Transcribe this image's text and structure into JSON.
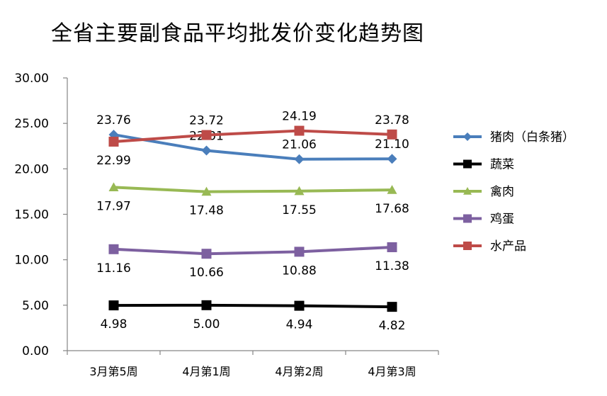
{
  "chart_data": {
    "type": "line",
    "title": "全省主要副食品平均批发价变化趋势图",
    "categories": [
      "3月第5周",
      "4月第1周",
      "4月第2周",
      "4月第3周"
    ],
    "ylim": [
      0,
      30
    ],
    "yticks": [
      "0.00",
      "5.00",
      "10.00",
      "15.00",
      "20.00",
      "25.00",
      "30.00"
    ],
    "grid": false,
    "legend_position": "right",
    "series": [
      {
        "name": "猪肉（白条猪）",
        "values": [
          23.76,
          22.01,
          21.06,
          21.1
        ],
        "labels": [
          "23.76",
          "22.01",
          "21.06",
          "21.10"
        ],
        "color": "#4A7EBB",
        "marker": "diamond",
        "label_pos": "above"
      },
      {
        "name": "蔬菜",
        "values": [
          4.98,
          5.0,
          4.94,
          4.82
        ],
        "labels": [
          "4.98",
          "5.00",
          "4.94",
          "4.82"
        ],
        "color": "#000000",
        "marker": "square",
        "label_pos": "below"
      },
      {
        "name": "禽肉",
        "values": [
          17.97,
          17.48,
          17.55,
          17.68
        ],
        "labels": [
          "17.97",
          "17.48",
          "17.55",
          "17.68"
        ],
        "color": "#98B954",
        "marker": "triangle",
        "label_pos": "below"
      },
      {
        "name": "鸡蛋",
        "values": [
          11.16,
          10.66,
          10.88,
          11.38
        ],
        "labels": [
          "11.16",
          "10.66",
          "10.88",
          "11.38"
        ],
        "color": "#7D60A0",
        "marker": "square",
        "label_pos": "below"
      },
      {
        "name": "水产品",
        "values": [
          22.99,
          23.72,
          24.19,
          23.78
        ],
        "labels": [
          "22.99",
          "23.72",
          "24.19",
          "23.78"
        ],
        "color": "#BE4B48",
        "marker": "square",
        "label_pos": "mixed"
      }
    ]
  }
}
